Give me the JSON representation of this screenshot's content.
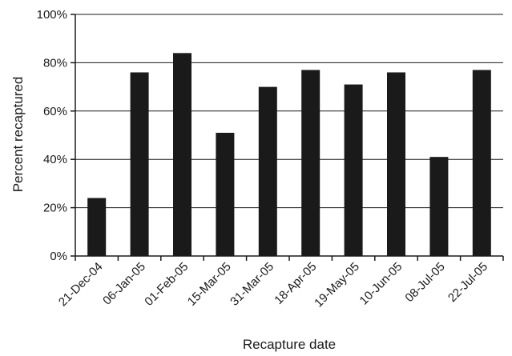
{
  "chart_data": {
    "type": "bar",
    "categories": [
      "21-Dec-04",
      "06-Jan-05",
      "01-Feb-05",
      "15-Mar-05",
      "31-Mar-05",
      "18-Apr-05",
      "19-May-05",
      "10-Jun-05",
      "08-Jul-05",
      "22-Jul-05"
    ],
    "values": [
      24,
      76,
      84,
      51,
      70,
      77,
      71,
      76,
      41,
      77
    ],
    "xlabel": "Recapture date",
    "ylabel": "Percent recaptured",
    "ylim": [
      0,
      100
    ],
    "yticks": [
      0,
      20,
      40,
      60,
      80,
      100
    ],
    "ytick_labels": [
      "0%",
      "20%",
      "40%",
      "60%",
      "80%",
      "100%"
    ],
    "grid": "horizontal",
    "bar_color": "#1a1a1a"
  }
}
